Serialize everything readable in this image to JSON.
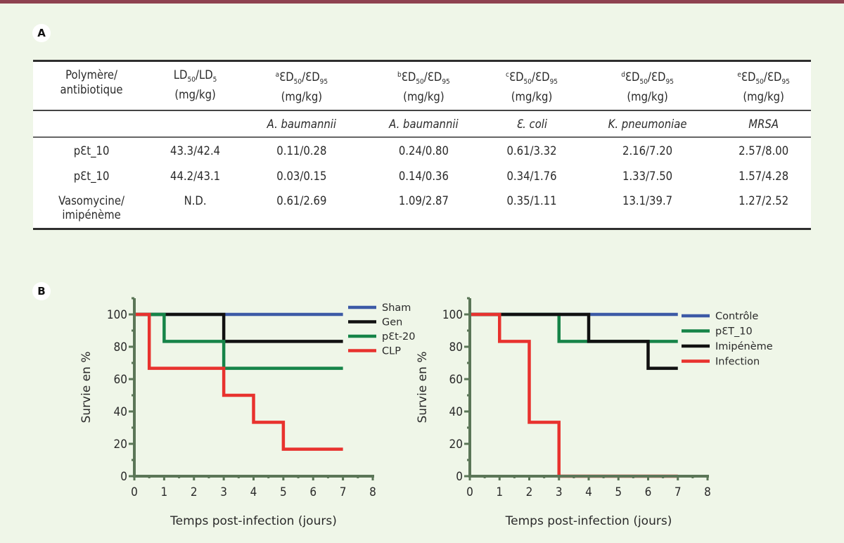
{
  "panels": {
    "a": "A",
    "b": "B"
  },
  "table": {
    "headers": [
      {
        "lines": [
          "Polymère/",
          "antibiotique"
        ]
      },
      {
        "main": "LD",
        "sub1": "50",
        "mid": "/LD",
        "sub2": "5",
        "unit": "(mg/kg)"
      },
      {
        "sup": "a",
        "main": "ƐD",
        "sub1": "50",
        "mid": "/ƐD",
        "sub2": "95",
        "unit": "(mg/kg)"
      },
      {
        "sup": "b",
        "main": "ƐD",
        "sub1": "50",
        "mid": "/ƐD",
        "sub2": "95",
        "unit": "(mg/kg)"
      },
      {
        "sup": "c",
        "main": "ƐD",
        "sub1": "50",
        "mid": "/ƐD",
        "sub2": "95",
        "unit": "(mg/kg)"
      },
      {
        "sup": "d",
        "main": "ƐD",
        "sub1": "50",
        "mid": "/ƐD",
        "sub2": "95",
        "unit": "(mg/kg)"
      },
      {
        "sup": "e",
        "main": "ƐD",
        "sub1": "50",
        "mid": "/ƐD",
        "sub2": "95",
        "unit": "(mg/kg)"
      }
    ],
    "species": [
      "",
      "",
      "A. baumannii",
      "A. baumannii",
      "Ɛ. coli",
      "K. pneumoniae",
      "MRSA"
    ],
    "rows": [
      {
        "name": [
          "pƐt_10"
        ],
        "values": [
          "43.3/42.4",
          "0.11/0.28",
          "0.24/0.80",
          "0.61/3.32",
          "2.16/7.20",
          "2.57/8.00"
        ]
      },
      {
        "name": [
          "pƐt_10"
        ],
        "values": [
          "44.2/43.1",
          "0.03/0.15",
          "0.14/0.36",
          "0.34/1.76",
          "1.33/7.50",
          "1.57/4.28"
        ]
      },
      {
        "name": [
          "Vasomycine/",
          "imipénème"
        ],
        "values": [
          "N.D.",
          "0.61/2.69",
          "1.09/2.87",
          "0.35/1.11",
          "13.1/39.7",
          "1.27/2.52"
        ]
      }
    ]
  },
  "chart_data": [
    {
      "type": "line",
      "step": true,
      "title": "",
      "xlabel": "Temps post-infection (jours)",
      "ylabel": "Survie en %",
      "xlim": [
        0,
        8
      ],
      "ylim": [
        0,
        110
      ],
      "xticks": [
        0,
        1,
        2,
        3,
        4,
        5,
        6,
        7,
        8
      ],
      "yticks": [
        0,
        20,
        40,
        60,
        80,
        100
      ],
      "grid": false,
      "legend_position": "top-right",
      "series": [
        {
          "name": "Sham",
          "color": "#3c5aa6",
          "x": [
            0,
            7
          ],
          "y": [
            100,
            100
          ]
        },
        {
          "name": "Gen",
          "color": "#111111",
          "x": [
            0,
            3,
            7
          ],
          "y": [
            100,
            83.3,
            83.3
          ]
        },
        {
          "name": "pƐt-20",
          "color": "#168448",
          "x": [
            0,
            1,
            3,
            7
          ],
          "y": [
            100,
            83.3,
            66.7,
            66.7
          ]
        },
        {
          "name": "CLP",
          "color": "#e8322e",
          "x": [
            0,
            0.5,
            3,
            4,
            5,
            7
          ],
          "y": [
            100,
            66.7,
            50,
            33.3,
            16.7,
            16.7
          ]
        }
      ]
    },
    {
      "type": "line",
      "step": true,
      "title": "",
      "xlabel": "Temps post-infection (jours)",
      "ylabel": "Survie en %",
      "xlim": [
        0,
        8
      ],
      "ylim": [
        0,
        110
      ],
      "xticks": [
        0,
        1,
        2,
        3,
        4,
        5,
        6,
        7,
        8
      ],
      "yticks": [
        0,
        20,
        40,
        60,
        80,
        100
      ],
      "grid": false,
      "legend_position": "right",
      "series": [
        {
          "name": "Contrôle",
          "color": "#3c5aa6",
          "x": [
            0,
            7
          ],
          "y": [
            100,
            100
          ]
        },
        {
          "name": "pƐT_10",
          "color": "#168448",
          "x": [
            0,
            3,
            7
          ],
          "y": [
            100,
            83.3,
            83.3
          ]
        },
        {
          "name": "Imipénème",
          "color": "#111111",
          "x": [
            0,
            4,
            6,
            7
          ],
          "y": [
            100,
            83.3,
            66.7,
            66.7
          ]
        },
        {
          "name": "Infection",
          "color": "#e8322e",
          "x": [
            0,
            1,
            2,
            3,
            7
          ],
          "y": [
            100,
            83.3,
            33.3,
            0,
            0
          ]
        }
      ]
    }
  ]
}
